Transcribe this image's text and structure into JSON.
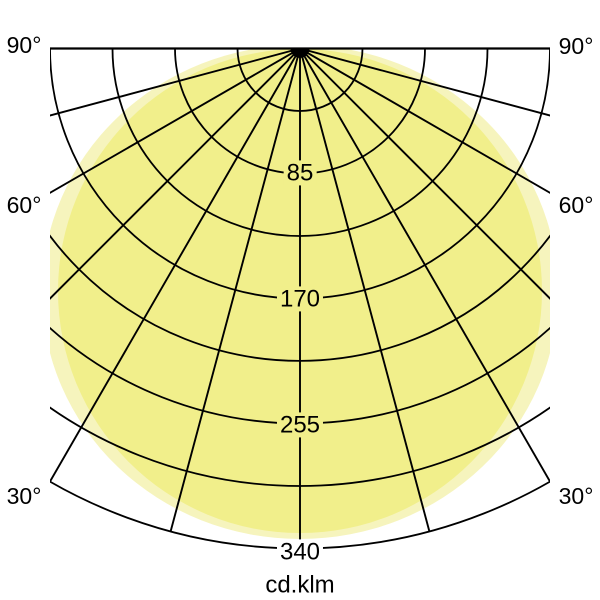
{
  "chart_data": {
    "type": "polar",
    "title": "",
    "unit_label": "cd.klm",
    "angle_labels_left": [
      "90°",
      "60°",
      "30°"
    ],
    "angle_labels_right": [
      "90°",
      "60°",
      "30°"
    ],
    "angle_label_values_deg": [
      90,
      60,
      30
    ],
    "radial_tick_labels": [
      "85",
      "170",
      "255",
      "340"
    ],
    "radial_tick_values": [
      85,
      170,
      255,
      340
    ],
    "radial_grid_step": 42.5,
    "radial_max": 340,
    "angular_grid_step_deg": 15,
    "angle_range_deg": [
      -90,
      90
    ],
    "grid_on": true,
    "legend": "none",
    "series": [
      {
        "name": "intensity-distribution-halo",
        "fill": "#f6f4bd",
        "angles_deg": [
          0,
          15,
          30,
          45,
          60,
          75,
          90
        ],
        "values_cd_per_klm": [
          335,
          324,
          293,
          242,
          175,
          95,
          0
        ],
        "shape": "broad cosine-like lobe (pale outer curve)"
      },
      {
        "name": "intensity-distribution-main",
        "fill": "#f1ef8b",
        "angles_deg": [
          0,
          15,
          30,
          45,
          60,
          75,
          90
        ],
        "values_cd_per_klm": [
          329,
          318,
          285,
          233,
          165,
          85,
          0
        ],
        "shape": "cosine (circular) lobe, max ~330 cd/klm at nadir"
      }
    ],
    "colors": {
      "grid": "#000000",
      "background": "#ffffff"
    }
  }
}
